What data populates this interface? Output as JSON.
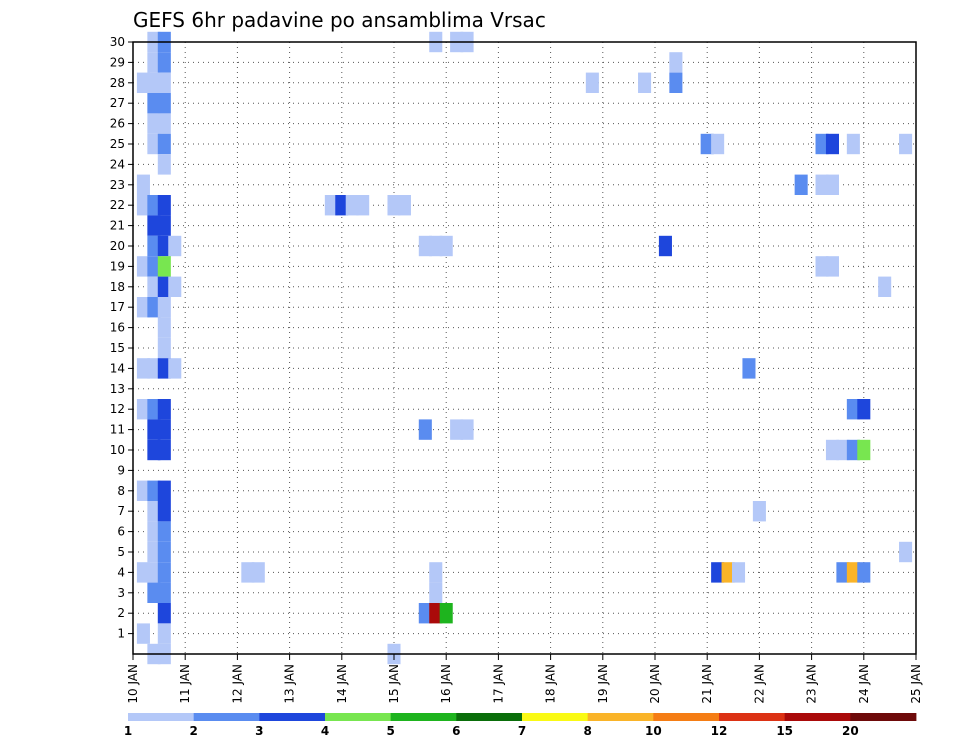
{
  "chart_data": {
    "type": "heatmap",
    "title": "GEFS 6hr padavine po ansamblima Vrsac",
    "x_ticks": [
      "10 JAN",
      "11 JAN",
      "12 JAN",
      "13 JAN",
      "14 JAN",
      "15 JAN",
      "16 JAN",
      "17 JAN",
      "18 JAN",
      "19 JAN",
      "20 JAN",
      "21 JAN",
      "22 JAN",
      "23 JAN",
      "24 JAN",
      "25 JAN"
    ],
    "y_ticks": [
      "1",
      "2",
      "3",
      "4",
      "5",
      "6",
      "7",
      "8",
      "9",
      "10",
      "11",
      "12",
      "13",
      "14",
      "15",
      "16",
      "17",
      "18",
      "19",
      "20",
      "21",
      "22",
      "23",
      "24",
      "25",
      "26",
      "27",
      "28",
      "29",
      "30"
    ],
    "x_range_days": [
      10,
      25
    ],
    "y_range_members": [
      0,
      30
    ],
    "grid": "dotted",
    "colorbar": {
      "levels": [
        "1",
        "2",
        "3",
        "4",
        "5",
        "6",
        "7",
        "8",
        "10",
        "12",
        "15",
        "20"
      ],
      "colors": [
        "#b4c8f8",
        "#5a8cf0",
        "#1e46dc",
        "#78e650",
        "#1eb41e",
        "#0a6e0a",
        "#fafa14",
        "#fab428",
        "#f57d14",
        "#dc3214",
        "#aa0a0a",
        "#6e0a0a"
      ]
    },
    "cells": [
      [
        10.4,
        30,
        1
      ],
      [
        10.6,
        30,
        2
      ],
      [
        10.4,
        29,
        1
      ],
      [
        10.6,
        29,
        2
      ],
      [
        10.2,
        28,
        1
      ],
      [
        10.4,
        28,
        1
      ],
      [
        10.6,
        28,
        1
      ],
      [
        10.4,
        27,
        2
      ],
      [
        10.6,
        27,
        2
      ],
      [
        10.4,
        26,
        1
      ],
      [
        10.6,
        26,
        1
      ],
      [
        10.4,
        25,
        1
      ],
      [
        10.6,
        25,
        2
      ],
      [
        10.6,
        24,
        1
      ],
      [
        10.2,
        23,
        1
      ],
      [
        10.2,
        22,
        1
      ],
      [
        10.4,
        22,
        2
      ],
      [
        10.6,
        22,
        3
      ],
      [
        10.4,
        21,
        3
      ],
      [
        10.6,
        21,
        3
      ],
      [
        10.4,
        20,
        2
      ],
      [
        10.6,
        20,
        3
      ],
      [
        10.8,
        20,
        1
      ],
      [
        10.2,
        19,
        1
      ],
      [
        10.4,
        19,
        2
      ],
      [
        10.6,
        19,
        4
      ],
      [
        10.4,
        18,
        1
      ],
      [
        10.6,
        18,
        3
      ],
      [
        10.8,
        18,
        1
      ],
      [
        10.2,
        17,
        1
      ],
      [
        10.4,
        17,
        2
      ],
      [
        10.6,
        17,
        1
      ],
      [
        10.6,
        16,
        1
      ],
      [
        10.6,
        15,
        1
      ],
      [
        10.2,
        14,
        1
      ],
      [
        10.4,
        14,
        1
      ],
      [
        10.6,
        14,
        3
      ],
      [
        10.8,
        14,
        1
      ],
      [
        10.2,
        12,
        1
      ],
      [
        10.4,
        12,
        2
      ],
      [
        10.6,
        12,
        3
      ],
      [
        10.4,
        11,
        3
      ],
      [
        10.6,
        11,
        3
      ],
      [
        10.4,
        10,
        3
      ],
      [
        10.6,
        10,
        3
      ],
      [
        10.2,
        8,
        1
      ],
      [
        10.4,
        8,
        2
      ],
      [
        10.6,
        8,
        3
      ],
      [
        10.4,
        7,
        1
      ],
      [
        10.6,
        7,
        3
      ],
      [
        10.4,
        6,
        1
      ],
      [
        10.6,
        6,
        2
      ],
      [
        10.4,
        5,
        1
      ],
      [
        10.6,
        5,
        2
      ],
      [
        10.2,
        4,
        1
      ],
      [
        10.4,
        4,
        1
      ],
      [
        10.6,
        4,
        2
      ],
      [
        10.4,
        3,
        2
      ],
      [
        10.6,
        3,
        2
      ],
      [
        10.6,
        2,
        3
      ],
      [
        10.2,
        1,
        1
      ],
      [
        10.6,
        1,
        1
      ],
      [
        10.4,
        0,
        1
      ],
      [
        10.6,
        0,
        1
      ],
      [
        15.8,
        30,
        1
      ],
      [
        16.2,
        30,
        1
      ],
      [
        16.4,
        30,
        1
      ],
      [
        20.4,
        29,
        1
      ],
      [
        18.8,
        28,
        1
      ],
      [
        19.8,
        28,
        1
      ],
      [
        20.4,
        28,
        2
      ],
      [
        21.0,
        25,
        2
      ],
      [
        21.2,
        25,
        1
      ],
      [
        23.2,
        25,
        2
      ],
      [
        23.4,
        25,
        3
      ],
      [
        23.8,
        25,
        1
      ],
      [
        24.8,
        25,
        1
      ],
      [
        22.8,
        23,
        2
      ],
      [
        23.2,
        23,
        1
      ],
      [
        23.4,
        23,
        1
      ],
      [
        13.8,
        22,
        1
      ],
      [
        14.0,
        22,
        3
      ],
      [
        14.2,
        22,
        1
      ],
      [
        14.4,
        22,
        1
      ],
      [
        15.0,
        22,
        1
      ],
      [
        15.2,
        22,
        1
      ],
      [
        15.6,
        20,
        1
      ],
      [
        15.8,
        20,
        1
      ],
      [
        16.0,
        20,
        1
      ],
      [
        20.2,
        20,
        3
      ],
      [
        23.2,
        19,
        1
      ],
      [
        23.4,
        19,
        1
      ],
      [
        24.4,
        18,
        1
      ],
      [
        21.8,
        14,
        2
      ],
      [
        23.8,
        12,
        2
      ],
      [
        24.0,
        12,
        3
      ],
      [
        15.6,
        11,
        2
      ],
      [
        16.2,
        11,
        1
      ],
      [
        16.4,
        11,
        1
      ],
      [
        23.4,
        10,
        1
      ],
      [
        23.6,
        10,
        1
      ],
      [
        23.8,
        10,
        2
      ],
      [
        24.0,
        10,
        4
      ],
      [
        22.0,
        7,
        1
      ],
      [
        24.8,
        5,
        1
      ],
      [
        12.2,
        4,
        1
      ],
      [
        12.4,
        4,
        1
      ],
      [
        15.8,
        4,
        1
      ],
      [
        21.2,
        4,
        3
      ],
      [
        21.4,
        4,
        8
      ],
      [
        21.6,
        4,
        1
      ],
      [
        23.6,
        4,
        2
      ],
      [
        23.8,
        4,
        8
      ],
      [
        24.0,
        4,
        2
      ],
      [
        15.8,
        3,
        1
      ],
      [
        15.6,
        2,
        2
      ],
      [
        15.8,
        2,
        11
      ],
      [
        16.0,
        2,
        5
      ],
      [
        15.0,
        0,
        1
      ]
    ]
  }
}
